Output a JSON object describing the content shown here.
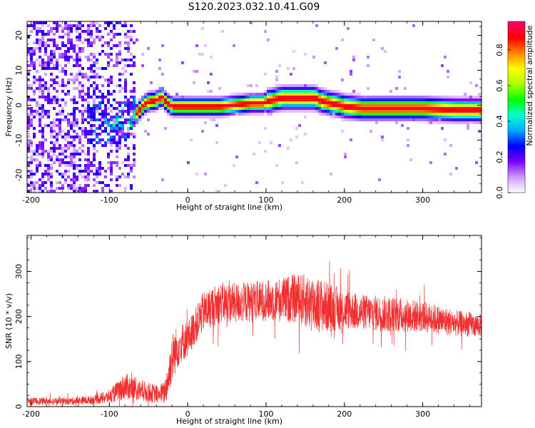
{
  "title": "S120.2023.032.10.41.G09",
  "chart_data": [
    {
      "type": "heatmap",
      "xlabel": "Height of straight line (km)",
      "ylabel": "Frequency (Hz)",
      "xlim": [
        -205,
        375
      ],
      "ylim": [
        -25,
        24
      ],
      "xticks": [
        -200,
        -100,
        0,
        100,
        200,
        300
      ],
      "yticks": [
        -20,
        -10,
        0,
        10,
        20
      ],
      "colorbar": {
        "label": "Normalized spectral amplitude",
        "range": [
          0,
          0.96
        ],
        "ticks": [
          "0.0",
          "0.2",
          "0.4",
          "0.6",
          "0.8"
        ],
        "colormap": [
          "#ffffff",
          "#cc99ff",
          "#7a00ff",
          "#0000ff",
          "#00aaff",
          "#00ffcc",
          "#00ff00",
          "#aaff00",
          "#ffff00",
          "#ff8800",
          "#ff0000",
          "#ff0066"
        ]
      },
      "ridge": {
        "x": [
          -75,
          -70,
          -60,
          -55,
          -50,
          -45,
          -40,
          -35,
          -30,
          -25,
          -20,
          -10,
          0,
          20,
          40,
          60,
          80,
          95,
          100,
          110,
          120,
          140,
          160,
          170,
          180,
          200,
          220,
          250,
          280,
          300,
          340,
          375
        ],
        "frequency": [
          -4.5,
          -3,
          0,
          1,
          1.5,
          1.5,
          2,
          3,
          1.5,
          0.5,
          0,
          0,
          0,
          0,
          0,
          0.5,
          1,
          1,
          1.5,
          2,
          2.5,
          2.5,
          2.5,
          1.5,
          1,
          0,
          -0.5,
          -0.5,
          -0.5,
          -0.5,
          -1,
          -1
        ]
      },
      "noise_region_x": [
        -205,
        -70
      ]
    },
    {
      "type": "line",
      "xlabel": "Height of straight line (km)",
      "ylabel": "SNR (10 * v/v)",
      "xlim": [
        -205,
        375
      ],
      "ylim": [
        0,
        380
      ],
      "xticks": [
        -200,
        -100,
        0,
        100,
        200,
        300
      ],
      "yticks": [
        0,
        100,
        200,
        300
      ],
      "series": [
        {
          "color": "#f03030",
          "envelope": {
            "x": [
              -205,
              -150,
              -120,
              -100,
              -80,
              -60,
              -40,
              -30,
              -25,
              -20,
              -10,
              0,
              10,
              20,
              40,
              60,
              100,
              140,
              160,
              180,
              200,
              220,
              260,
              300,
              340,
              375
            ],
            "mean": [
              12,
              12,
              15,
              22,
              45,
              35,
              28,
              30,
              60,
              110,
              140,
              150,
              180,
              210,
              230,
              230,
              235,
              240,
              230,
              220,
              215,
              210,
              205,
              200,
              185,
              180
            ],
            "spread": [
              8,
              8,
              10,
              15,
              30,
              25,
              20,
              25,
              45,
              55,
              45,
              40,
              40,
              45,
              45,
              45,
              45,
              55,
              65,
              55,
              45,
              40,
              40,
              35,
              30,
              25
            ]
          }
        }
      ]
    }
  ]
}
